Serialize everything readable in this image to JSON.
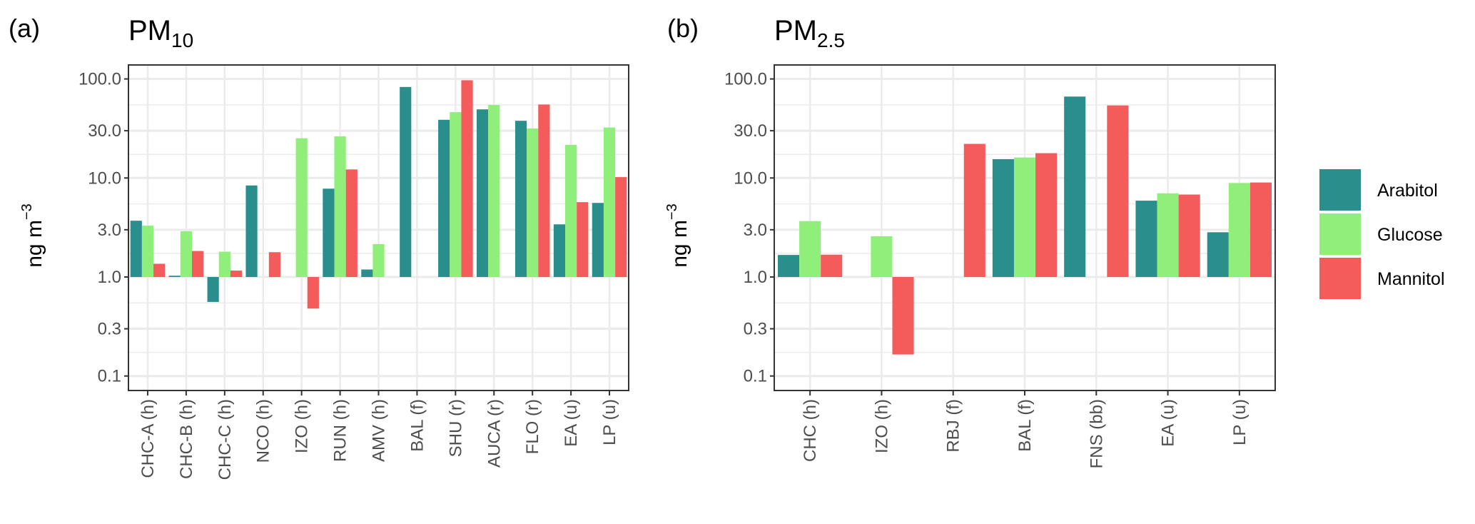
{
  "colors": {
    "Arabitol": "#2a8e8c",
    "Glucose": "#90ee7a",
    "Mannitol": "#f45b5b"
  },
  "legend": {
    "items": [
      "Arabitol",
      "Glucose",
      "Mannitol"
    ]
  },
  "chart_data": [
    {
      "type": "bar",
      "panel_label": "(a)",
      "title_main": "PM",
      "title_sub": "10",
      "ylabel_main": "ng m",
      "ylabel_sup": "−3",
      "yscale": "log10",
      "baseline": 1.0,
      "ylim": [
        0.085,
        140
      ],
      "yticks": [
        100,
        30,
        10,
        3,
        1,
        0.3,
        0.1
      ],
      "ytick_labels": [
        "100.0",
        "30.0",
        "10.0",
        "3.0",
        "1.0",
        "0.3",
        "0.1"
      ],
      "grid": true,
      "categories": [
        "CHC-A (h)",
        "CHC-B (h)",
        "CHC-C (h)",
        "NCO (h)",
        "IZO (h)",
        "RUN (h)",
        "AMV (h)",
        "BAL (f)",
        "SHU (r)",
        "AUCA (r)",
        "FLO (r)",
        "EA (u)",
        "LP (u)"
      ],
      "series": [
        {
          "name": "Arabitol",
          "values": [
            3.7,
            1.03,
            0.56,
            8.4,
            null,
            7.8,
            1.19,
            83,
            38.7,
            49.3,
            37.8,
            3.4,
            5.6
          ]
        },
        {
          "name": "Glucose",
          "values": [
            3.3,
            2.9,
            1.8,
            null,
            25.2,
            26.3,
            2.15,
            null,
            46.2,
            54.6,
            31.6,
            21.6,
            32.3
          ]
        },
        {
          "name": "Mannitol",
          "values": [
            1.36,
            1.83,
            1.16,
            1.78,
            0.48,
            12.2,
            null,
            null,
            97,
            null,
            55.2,
            5.7,
            10.2
          ]
        }
      ]
    },
    {
      "type": "bar",
      "panel_label": "(b)",
      "title_main": "PM",
      "title_sub": "2.5",
      "ylabel_main": "ng m",
      "ylabel_sup": "−3",
      "yscale": "log10",
      "baseline": 1.0,
      "ylim": [
        0.085,
        140
      ],
      "yticks": [
        100,
        30,
        10,
        3,
        1,
        0.3,
        0.1
      ],
      "ytick_labels": [
        "100.0",
        "30.0",
        "10.0",
        "3.0",
        "1.0",
        "0.3",
        "0.1"
      ],
      "grid": true,
      "legend_position": "right",
      "categories": [
        "CHC (h)",
        "IZO (h)",
        "RBJ (f)",
        "BAL (f)",
        "FNS (bb)",
        "EA (u)",
        "LP (u)"
      ],
      "series": [
        {
          "name": "Arabitol",
          "values": [
            1.67,
            null,
            null,
            15.5,
            66.4,
            5.9,
            2.83
          ]
        },
        {
          "name": "Glucose",
          "values": [
            3.67,
            2.58,
            null,
            16.1,
            null,
            7.0,
            8.9
          ]
        },
        {
          "name": "Mannitol",
          "values": [
            1.68,
            0.165,
            22.1,
            17.8,
            54.0,
            6.8,
            9.0
          ]
        }
      ]
    }
  ]
}
